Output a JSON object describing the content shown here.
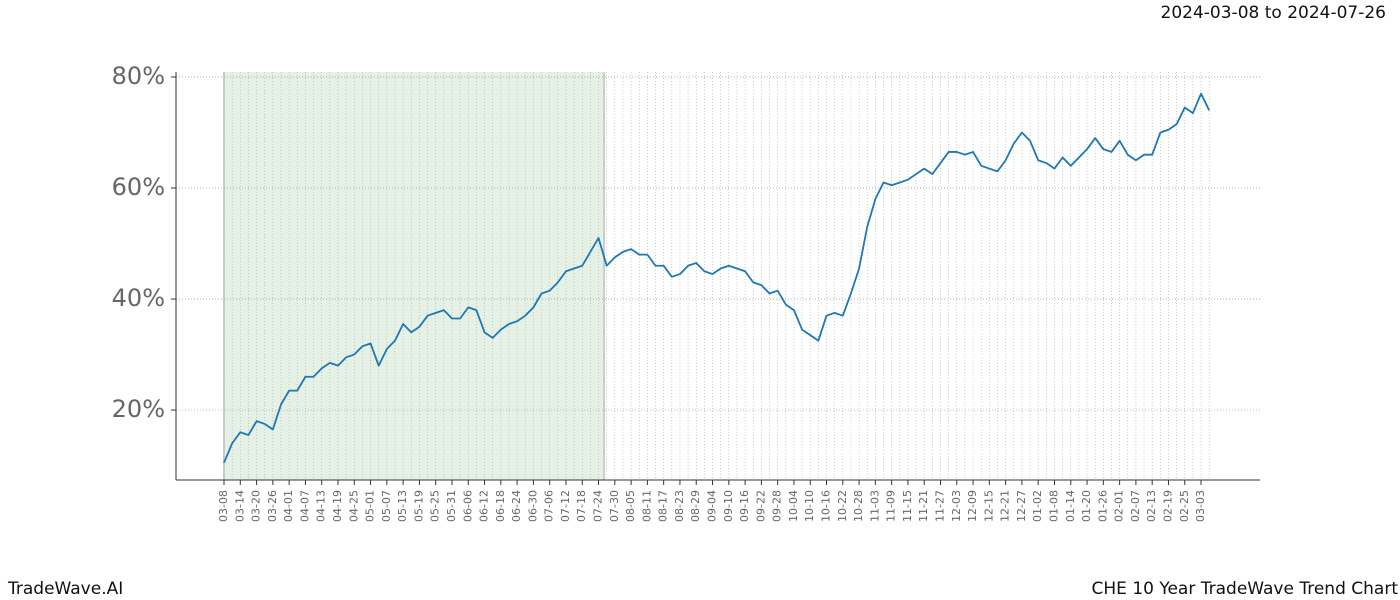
{
  "chart_data": {
    "type": "line",
    "title": "2024-03-08 to 2024-07-26",
    "footer_left": "TradeWave.AI",
    "footer_right": "CHE 10 Year TradeWave Trend Chart",
    "categories": [
      "03-08",
      null,
      "03-14",
      null,
      "03-20",
      null,
      "03-26",
      null,
      "04-01",
      null,
      "04-07",
      null,
      "04-13",
      null,
      "04-19",
      null,
      "04-25",
      null,
      "05-01",
      null,
      "05-07",
      null,
      "05-13",
      null,
      "05-19",
      null,
      "05-25",
      null,
      "05-31",
      null,
      "06-06",
      null,
      "06-12",
      null,
      "06-18",
      null,
      "06-24",
      null,
      "06-30",
      null,
      "07-06",
      null,
      "07-12",
      null,
      "07-18",
      null,
      "07-24",
      null,
      "07-30",
      null,
      "08-05",
      null,
      "08-11",
      null,
      "08-17",
      null,
      "08-23",
      null,
      "08-29",
      null,
      "09-04",
      null,
      "09-10",
      null,
      "09-16",
      null,
      "09-22",
      null,
      "09-28",
      null,
      "10-04",
      null,
      "10-10",
      null,
      "10-16",
      null,
      "10-22",
      null,
      "10-28",
      null,
      "11-03",
      null,
      "11-09",
      null,
      "11-15",
      null,
      "11-21",
      null,
      "11-27",
      null,
      "12-03",
      null,
      "12-09",
      null,
      "12-15",
      null,
      "12-21",
      null,
      "12-27",
      null,
      "01-02",
      null,
      "01-08",
      null,
      "01-14",
      null,
      "01-20",
      null,
      "01-26",
      null,
      "02-01",
      null,
      "02-07",
      null,
      "02-13",
      null,
      "02-19",
      null,
      "02-25",
      null,
      "03-03",
      null
    ],
    "series": [
      {
        "color": "#1f77b4",
        "values": [
          10.5,
          14,
          16,
          15.5,
          18,
          17.5,
          16.5,
          21,
          23.5,
          23.5,
          26,
          26,
          27.5,
          28.5,
          28,
          29.5,
          30,
          31.5,
          32,
          28,
          31,
          32.5,
          35.5,
          34,
          35,
          37,
          37.5,
          38,
          36.5,
          36.5,
          38.5,
          38,
          34,
          33,
          34.5,
          35.5,
          36,
          37,
          38.5,
          41,
          41.5,
          43,
          45,
          45.5,
          46,
          48.5,
          51,
          46,
          47.5,
          48.5,
          49,
          48,
          48,
          46,
          46,
          44,
          44.5,
          46,
          46.5,
          45,
          44.5,
          45.5,
          46,
          45.5,
          45,
          43,
          42.5,
          41,
          41.5,
          39,
          38,
          34.5,
          33.5,
          32.5,
          37,
          37.5,
          37,
          41,
          45.5,
          53,
          58,
          61,
          60.5,
          61,
          61.5,
          62.5,
          63.5,
          62.5,
          64.5,
          66.5,
          66.5,
          66,
          66.5,
          64,
          63.5,
          63,
          65,
          68,
          70,
          68.5,
          65,
          64.5,
          63.5,
          65.5,
          64,
          65.5,
          67,
          69,
          67,
          66.5,
          68.5,
          66,
          65,
          66,
          66,
          70,
          70.5,
          71.5,
          74.5,
          73.5,
          77,
          74
        ]
      }
    ],
    "ylim": [
      7.4,
      80.9
    ],
    "yticks": [
      {
        "value": 20,
        "label": "20%"
      },
      {
        "value": 40,
        "label": "40%"
      },
      {
        "value": 60,
        "label": "60%"
      },
      {
        "value": 80,
        "label": "80%"
      }
    ],
    "grid": true
  }
}
